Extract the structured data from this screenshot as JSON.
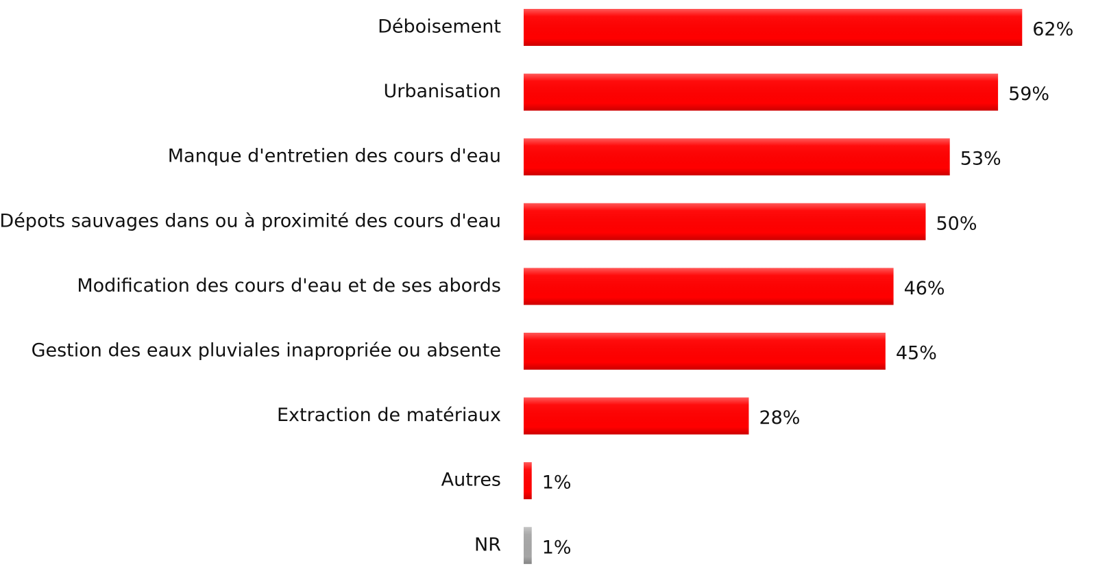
{
  "chart_data": {
    "type": "hbar",
    "categories": [
      "Déboisement",
      "Urbanisation",
      "Manque d'entretien des cours d'eau",
      "Dépots sauvages dans ou à proximité des cours d'eau",
      "Modification des cours d'eau et de ses abords",
      "Gestion des eaux pluviales inapropriée ou absente",
      "Extraction de matériaux",
      "Autres",
      "NR"
    ],
    "values": [
      62,
      59,
      53,
      50,
      46,
      45,
      28,
      1,
      1
    ],
    "value_labels": [
      "62%",
      "59%",
      "53%",
      "50%",
      "46%",
      "45%",
      "28%",
      "1%",
      "1%"
    ],
    "colors": [
      "#ff0000",
      "#ff0000",
      "#ff0000",
      "#ff0000",
      "#ff0000",
      "#ff0000",
      "#ff0000",
      "#ff0000",
      "#a6a6a6"
    ]
  }
}
